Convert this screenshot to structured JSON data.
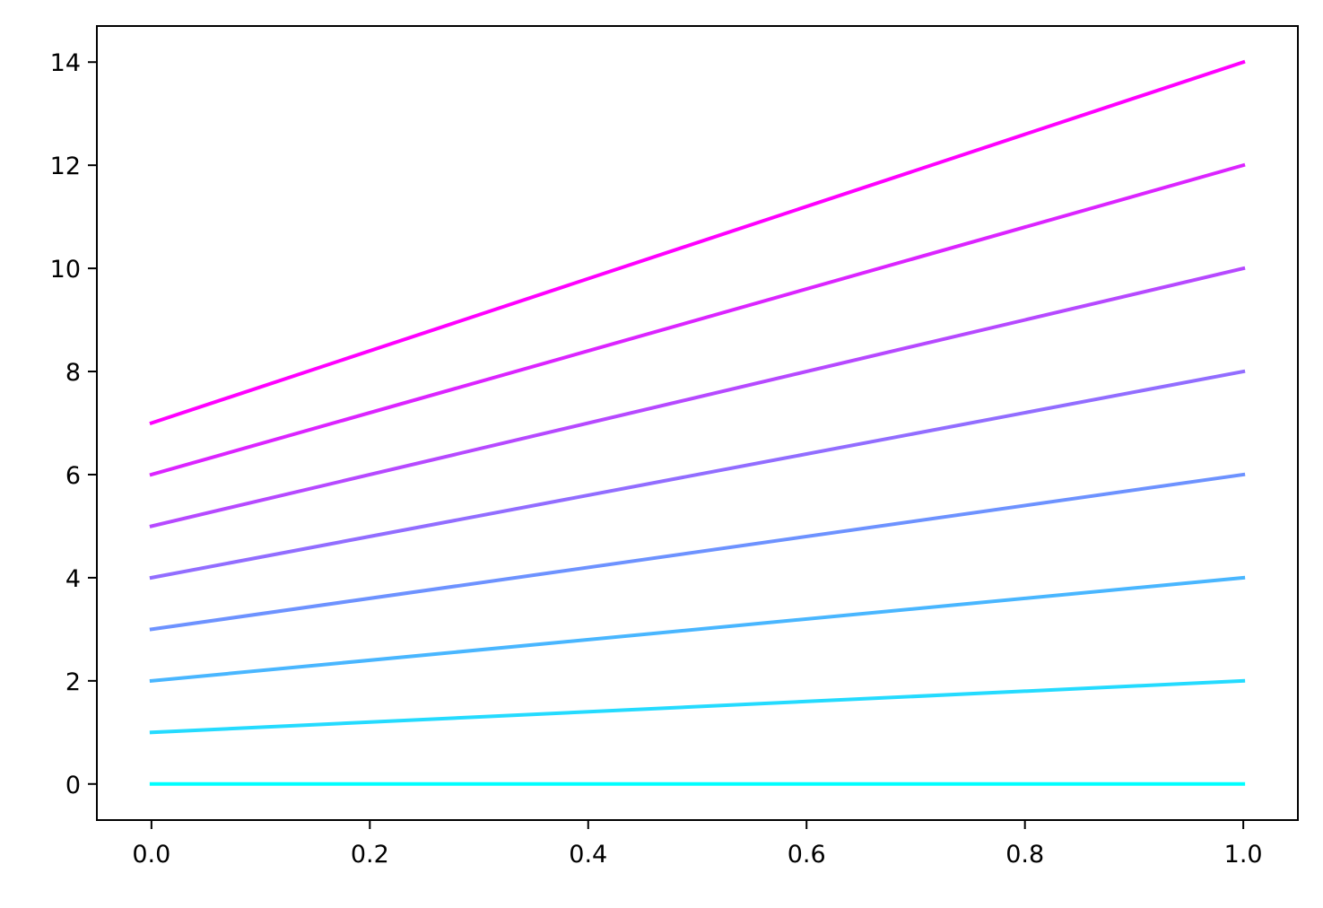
{
  "chart_data": {
    "type": "line",
    "title": "",
    "xlabel": "",
    "ylabel": "",
    "xlim": [
      -0.05,
      1.05
    ],
    "ylim": [
      -0.7,
      14.7
    ],
    "grid": false,
    "x": [
      0.0,
      1.0
    ],
    "x_ticks": [
      {
        "value": 0.0,
        "label": "0.0"
      },
      {
        "value": 0.2,
        "label": "0.2"
      },
      {
        "value": 0.4,
        "label": "0.4"
      },
      {
        "value": 0.6,
        "label": "0.6"
      },
      {
        "value": 0.8,
        "label": "0.8"
      },
      {
        "value": 1.0,
        "label": "1.0"
      }
    ],
    "y_ticks": [
      {
        "value": 0,
        "label": "0"
      },
      {
        "value": 2,
        "label": "2"
      },
      {
        "value": 4,
        "label": "4"
      },
      {
        "value": 6,
        "label": "6"
      },
      {
        "value": 8,
        "label": "8"
      },
      {
        "value": 10,
        "label": "10"
      },
      {
        "value": 12,
        "label": "12"
      },
      {
        "value": 14,
        "label": "14"
      }
    ],
    "series": [
      {
        "values": [
          0,
          0
        ],
        "color": "#00ffff"
      },
      {
        "values": [
          1,
          2
        ],
        "color": "#24dbff"
      },
      {
        "values": [
          2,
          4
        ],
        "color": "#49b6ff"
      },
      {
        "values": [
          3,
          6
        ],
        "color": "#6d92ff"
      },
      {
        "values": [
          4,
          8
        ],
        "color": "#926dff"
      },
      {
        "values": [
          5,
          10
        ],
        "color": "#b649ff"
      },
      {
        "values": [
          6,
          12
        ],
        "color": "#db24ff"
      },
      {
        "values": [
          7,
          14
        ],
        "color": "#ff00ff"
      }
    ]
  }
}
